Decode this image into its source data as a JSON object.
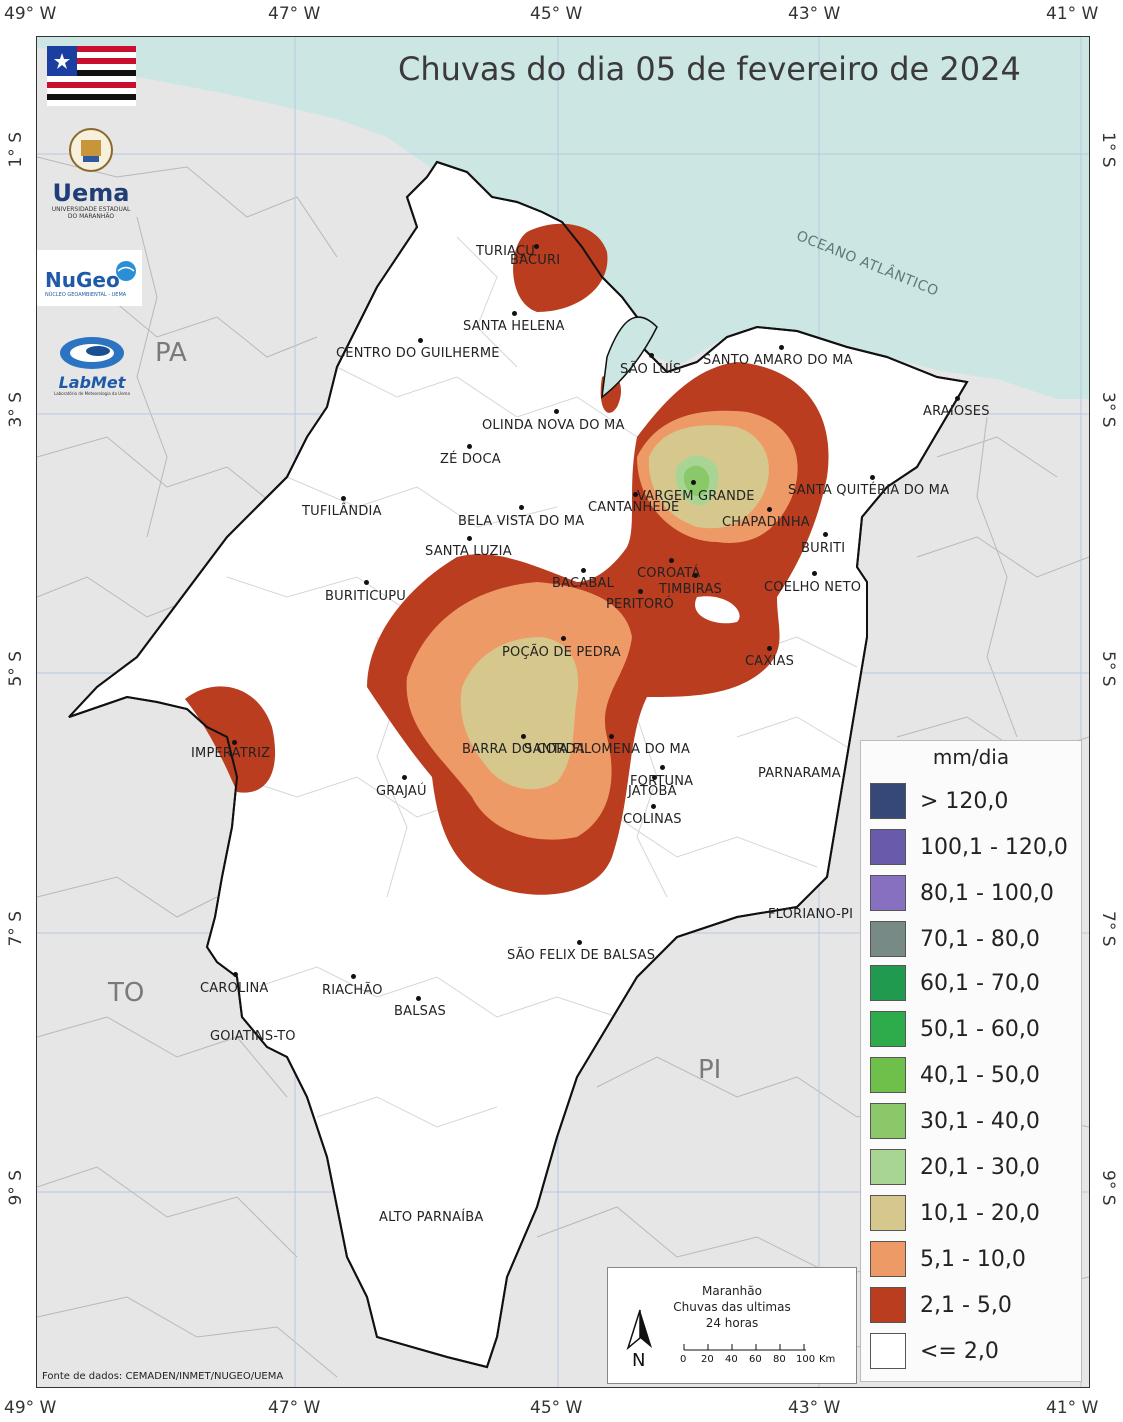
{
  "map": {
    "title": "Chuvas do dia 05 de fevereiro de 2024",
    "longitude_labels": [
      "49° W",
      "47° W",
      "45° W",
      "43° W",
      "41° W"
    ],
    "latitude_labels": [
      "1° S",
      "3° S",
      "5° S",
      "7° S",
      "9° S"
    ],
    "state_labels": {
      "pa": "PA",
      "to": "TO",
      "pi": "PI"
    },
    "ocean_label": "OCEANO ATLÂNTICO",
    "cities": {
      "turiacu": "TURIAÇU",
      "bacuri": "BACURI",
      "santa_helena": "SANTA HELENA",
      "centro_do_guilherme": "CENTRO DO GUILHERME",
      "sao_luis": "SÃO LUÍS",
      "santo_amaro": "SANTO AMARO DO MA",
      "araioses": "ARAIOSES",
      "olinda_nova": "OLINDA NOVA DO MA",
      "ze_doca": "ZÉ DOCA",
      "vargem_grande": "VARGEM GRANDE",
      "santa_quiteria": "SANTA QUITÉRIA DO MA",
      "tufilandia": "TUFILÂNDIA",
      "bela_vista": "BELA VISTA DO MA",
      "cantanhede": "CANTANHEDE",
      "chapadinha": "CHAPADINHA",
      "buriti": "BURITI",
      "santa_luzia": "SANTA LUZIA",
      "coroata": "COROATÁ",
      "timbiras": "TIMBIRAS",
      "bacabal": "BACABAL",
      "buriticupu": "BURITICUPU",
      "coelho_neto": "COELHO NETO",
      "peritoro": "PERITORÓ",
      "pocao_de_pedra": "POÇÃO DE PEDRA",
      "caxias": "CAXIAS",
      "imperatriz": "IMPERATRIZ",
      "barra_do_corda": "BARRA DO CORDA",
      "santa_filomena": "SANTA FILOMENA DO MA",
      "fortuna": "FORTUNA",
      "jatoba": "JATOBÁ",
      "grajau": "GRAJAÚ",
      "colinas": "COLINAS",
      "parnarama": "PARNARAMA",
      "floriano": "FLORIANO-PI",
      "sao_felix": "SÃO FELIX DE BALSAS",
      "carolina": "CAROLINA",
      "riachao": "RIACHÃO",
      "balsas": "BALSAS",
      "goiatins": "GOIATINS-TO",
      "alto_parnaiba": "ALTO PARNAÍBA"
    }
  },
  "legend": {
    "title": "mm/dia",
    "classes": [
      {
        "label": "> 120,0",
        "color": "#364878"
      },
      {
        "label": "100,1 - 120,0",
        "color": "#6a5aac"
      },
      {
        "label": "80,1 - 100,0",
        "color": "#8670bf"
      },
      {
        "label": "70,1 - 80,0",
        "color": "#788a85"
      },
      {
        "label": "60,1 - 70,0",
        "color": "#1f9a4e"
      },
      {
        "label": "50,1 - 60,0",
        "color": "#2eac4c"
      },
      {
        "label": "40,1 - 50,0",
        "color": "#6ec04a"
      },
      {
        "label": "30,1 - 40,0",
        "color": "#8ac86a"
      },
      {
        "label": "20,1 - 30,0",
        "color": "#a8d494"
      },
      {
        "label": "10,1 - 20,0",
        "color": "#d6c88c"
      },
      {
        "label": "5,1 - 10,0",
        "color": "#ee9a66"
      },
      {
        "label": "2,1 - 5,0",
        "color": "#b93d1e"
      },
      {
        "label": "<= 2,0",
        "color": "#ffffff"
      }
    ]
  },
  "info_box": {
    "line1": "Maranhão",
    "line2": "Chuvas das ultimas",
    "line3": "24 horas",
    "north": "N",
    "scale_ticks": [
      "0",
      "20",
      "40",
      "60",
      "80",
      "100"
    ],
    "scale_unit": "Km"
  },
  "credits": "Fonte de dados: CEMADEN/INMET/NUGEO/UEMA",
  "logos": {
    "uema": "Uema",
    "uema_sub1": "UNIVERSIDADE ESTADUAL",
    "uema_sub2": "DO MARANHÃO",
    "nugeo": "NuGeo",
    "nugeo_sub": "NÚCLEO GEOAMBIENTAL - UEMA",
    "labmet": "LabMet",
    "labmet_sub": "Laboratório de Meteorologia da Uema"
  },
  "colors": {
    "ocean": "#cce6e4",
    "land": "#e6e6e6",
    "state": "#ffffff"
  }
}
